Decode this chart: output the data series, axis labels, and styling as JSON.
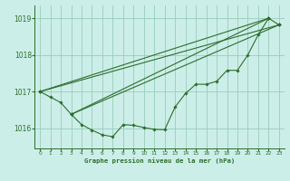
{
  "background_color": "#cceee8",
  "grid_color": "#99ccbb",
  "line_color": "#2d6e2d",
  "marker_color": "#2d6e2d",
  "xlabel": "Graphe pression niveau de la mer (hPa)",
  "xlim": [
    -0.5,
    23.5
  ],
  "ylim": [
    1015.45,
    1019.35
  ],
  "yticks": [
    1016,
    1017,
    1018,
    1019
  ],
  "xticks": [
    0,
    1,
    2,
    3,
    4,
    5,
    6,
    7,
    8,
    9,
    10,
    11,
    12,
    13,
    14,
    15,
    16,
    17,
    18,
    19,
    20,
    21,
    22,
    23
  ],
  "series1_x": [
    0,
    1,
    2,
    3,
    4,
    5,
    6,
    7,
    8,
    9,
    10,
    11,
    12,
    13,
    14,
    15,
    16,
    17,
    18,
    19,
    20,
    21,
    22,
    23
  ],
  "series1_y": [
    1017.0,
    1016.85,
    1016.7,
    1016.38,
    1016.1,
    1015.95,
    1015.82,
    1015.77,
    1016.1,
    1016.08,
    1016.02,
    1015.97,
    1015.96,
    1016.58,
    1016.95,
    1017.2,
    1017.2,
    1017.28,
    1017.58,
    1017.58,
    1018.0,
    1018.55,
    1019.0,
    1018.82
  ],
  "line2_x": [
    0,
    22
  ],
  "line2_y": [
    1017.0,
    1019.0
  ],
  "line3_x": [
    0,
    23
  ],
  "line3_y": [
    1017.0,
    1018.82
  ],
  "line4_x": [
    3,
    22
  ],
  "line4_y": [
    1016.38,
    1019.0
  ],
  "line5_x": [
    3,
    23
  ],
  "line5_y": [
    1016.38,
    1018.82
  ]
}
